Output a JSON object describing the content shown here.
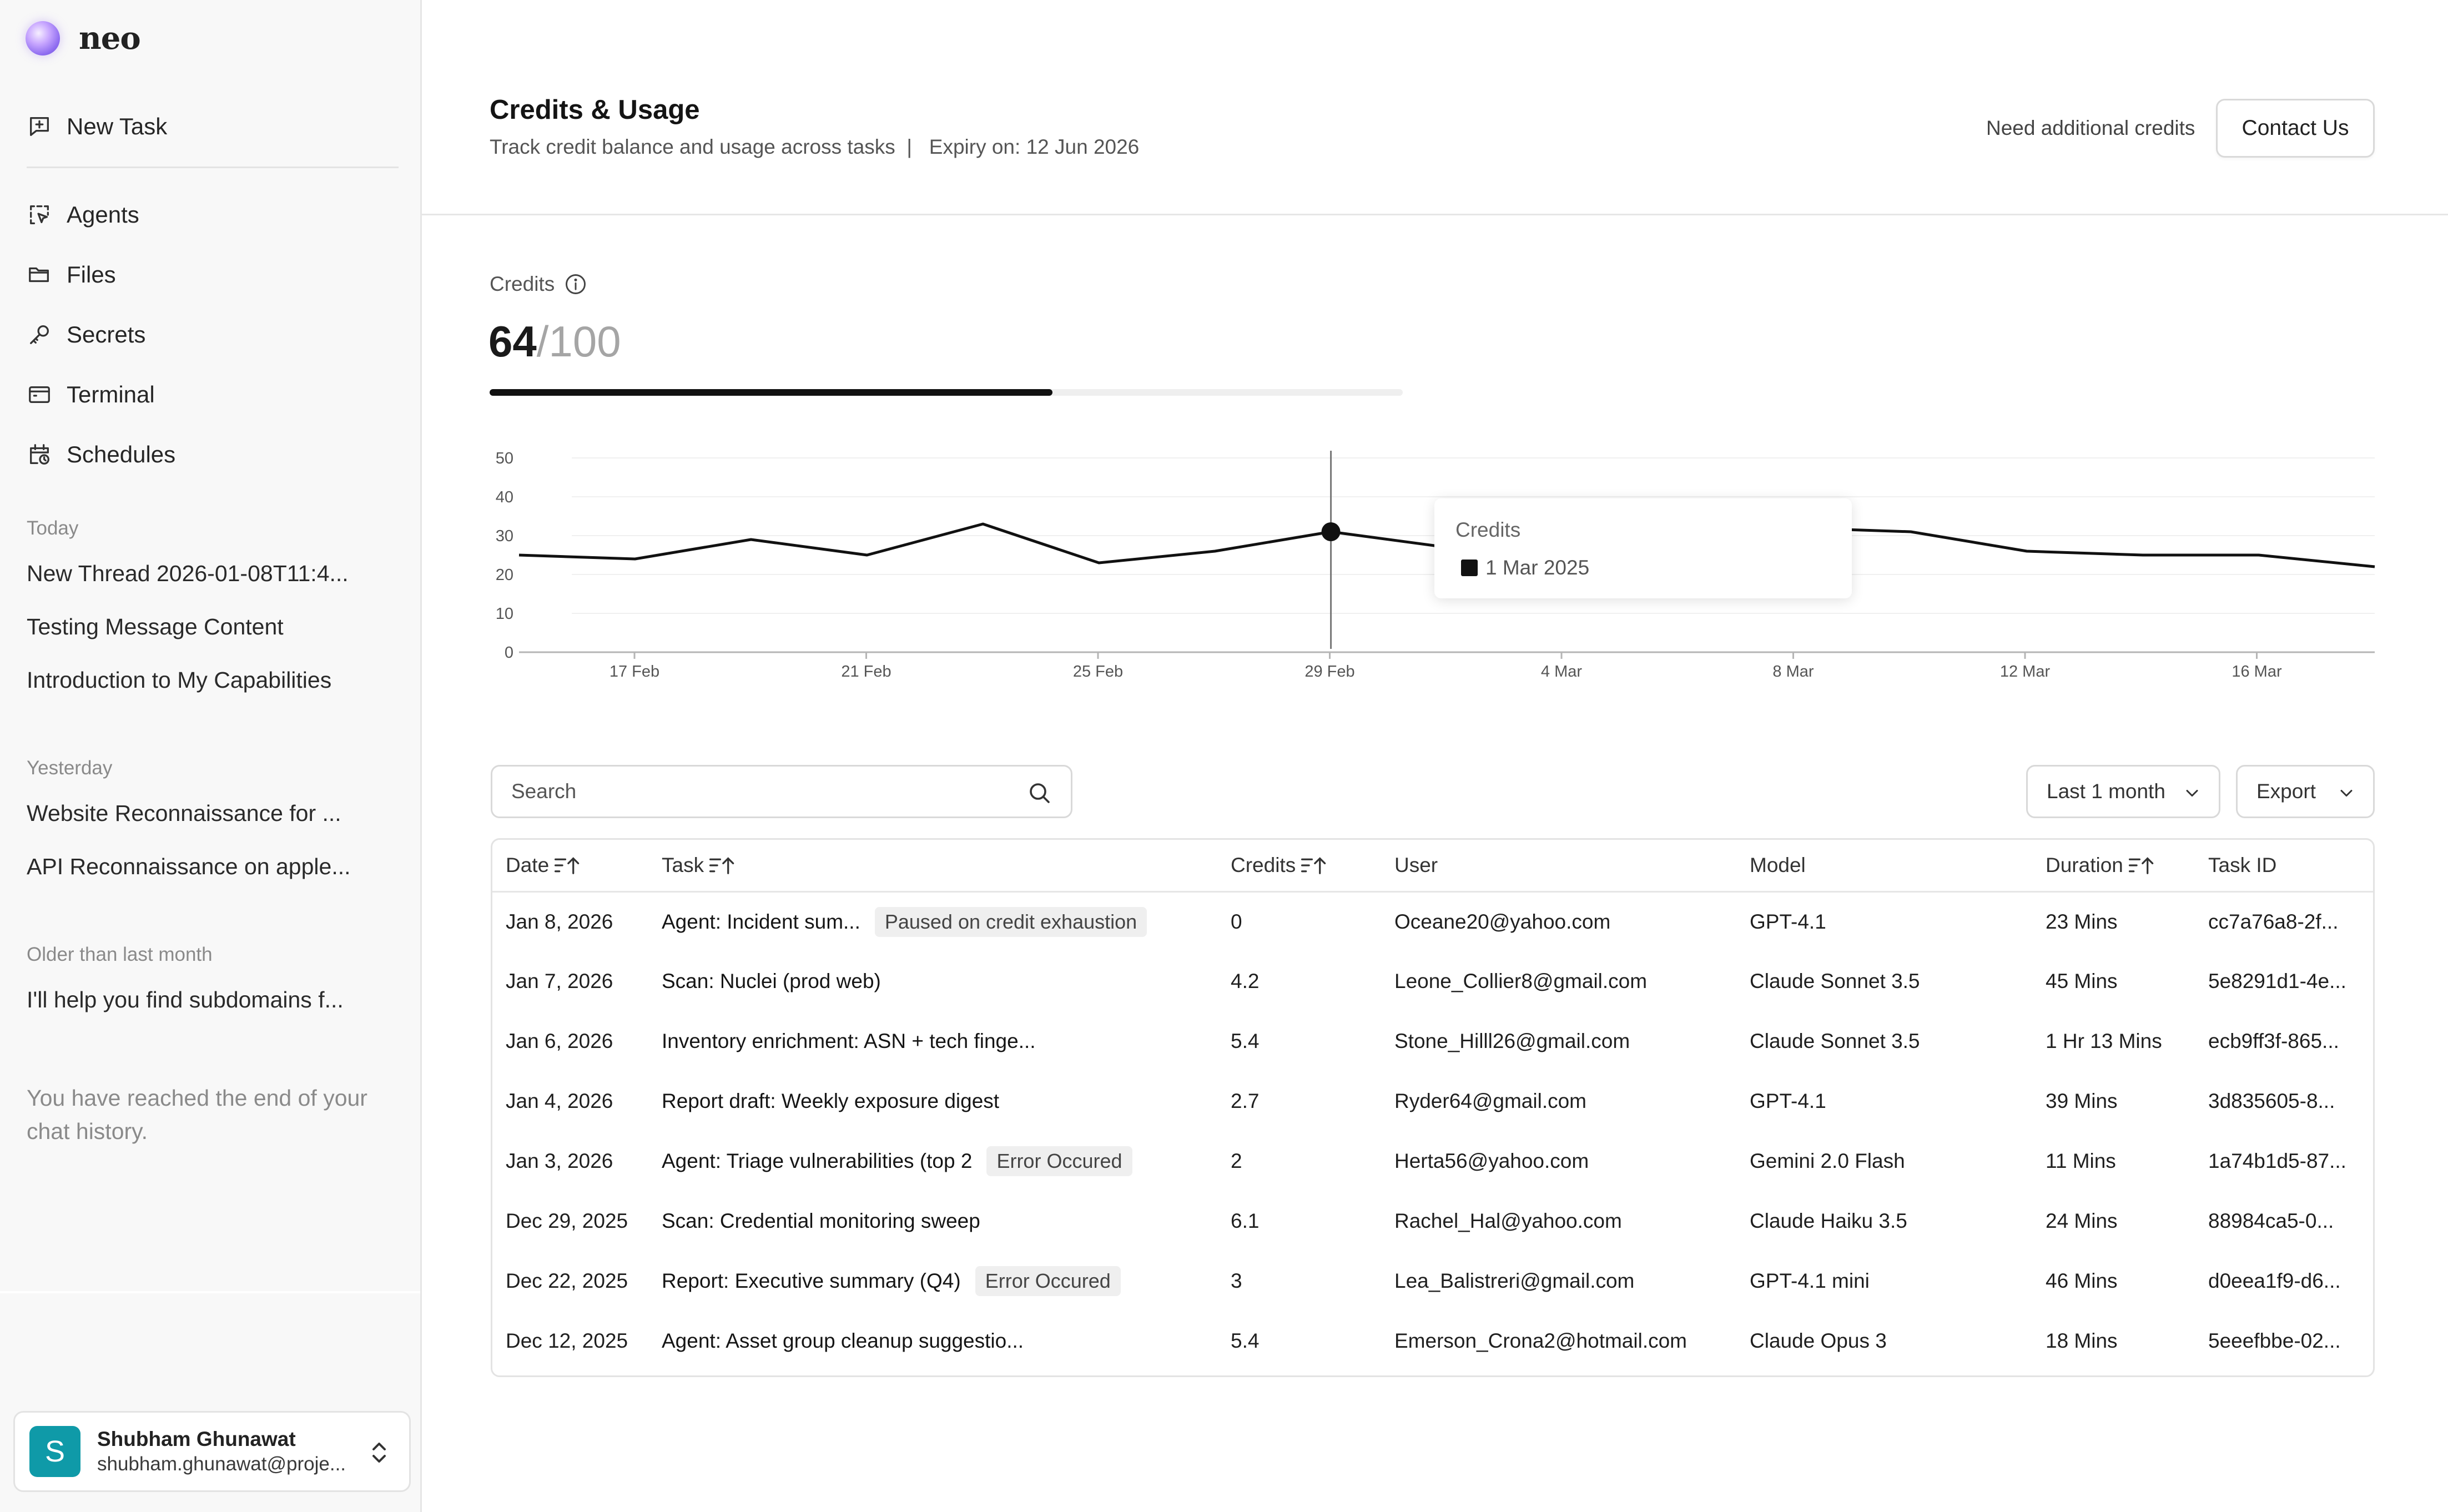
{
  "sidebar": {
    "brand": "neo",
    "new_task": "New Task",
    "nav": [
      {
        "label": "Agents",
        "icon": "agents-icon"
      },
      {
        "label": "Files",
        "icon": "folder-icon"
      },
      {
        "label": "Secrets",
        "icon": "key-icon"
      },
      {
        "label": "Terminal",
        "icon": "terminal-icon"
      },
      {
        "label": "Schedules",
        "icon": "calendar-clock-icon"
      }
    ],
    "sections": [
      {
        "label": "Today",
        "threads": [
          "New Thread 2026-01-08T11:4...",
          "Testing Message Content",
          "Introduction to My Capabilities"
        ]
      },
      {
        "label": "Yesterday",
        "threads": [
          "Website Reconnaissance for ...",
          "API Reconnaissance on apple..."
        ]
      },
      {
        "label": "Older than last month",
        "threads": [
          "I'll help you find subdomains f..."
        ]
      }
    ],
    "end_note": "You have reached the end of your chat history.",
    "user": {
      "initial": "S",
      "name": "Shubham Ghunawat",
      "email": "shubham.ghunawat@proje..."
    }
  },
  "header": {
    "title": "Credits & Usage",
    "subtitle": "Track credit balance and usage across tasks  |   Expiry on: 12 Jun 2026",
    "need_credits": "Need additional credits",
    "contact_button": "Contact Us"
  },
  "credits": {
    "label": "Credits",
    "used": "64",
    "total_text": "/100",
    "used_fraction": 0.64
  },
  "chart_data": {
    "type": "line",
    "x": [
      "15 Feb",
      "16 Feb",
      "19 Feb",
      "22 Feb",
      "25 Feb",
      "27 Feb",
      "29 Feb",
      "1 Mar",
      "3 Mar",
      "5 Mar",
      "8 Mar",
      "10 Mar",
      "12 Mar",
      "14 Mar",
      "16 Mar",
      "17 Mar",
      "19 Mar"
    ],
    "values": [
      25,
      24,
      29,
      25,
      33,
      23,
      26,
      31,
      27,
      32,
      32,
      32,
      31,
      26,
      25,
      25,
      22
    ],
    "x_ticks": [
      "17 Feb",
      "21 Feb",
      "25 Feb",
      "29 Feb",
      "4 Mar",
      "8 Mar",
      "12 Mar",
      "16 Mar"
    ],
    "y_ticks": [
      "0",
      "10",
      "20",
      "30",
      "40",
      "50"
    ],
    "ylim": [
      0,
      50
    ],
    "hover_index": 7,
    "line_color": "#111111"
  },
  "tooltip": {
    "title": "Credits",
    "date": "1 Mar 2025"
  },
  "controls": {
    "search_placeholder": "Search",
    "range": "Last 1 month",
    "export": "Export"
  },
  "table": {
    "columns": [
      "Date",
      "Task",
      "Credits",
      "User",
      "Model",
      "Duration",
      "Task ID"
    ],
    "rows": [
      {
        "date": "Jan 8, 2026",
        "task": "Agent: Incident sum...",
        "badge": "Paused on credit exhaustion",
        "credits": "0",
        "user": "Oceane20@yahoo.com",
        "model": "GPT-4.1",
        "duration": "23 Mins",
        "id": "cc7a76a8-2f..."
      },
      {
        "date": "Jan 7, 2026",
        "task": "Scan: Nuclei (prod web)",
        "badge": "",
        "credits": "4.2",
        "user": "Leone_Collier8@gmail.com",
        "model": "Claude Sonnet 3.5",
        "duration": "45 Mins",
        "id": "5e8291d1-4e..."
      },
      {
        "date": "Jan 6, 2026",
        "task": "Inventory enrichment: ASN + tech finge...",
        "badge": "",
        "credits": "5.4",
        "user": "Stone_Hilll26@gmail.com",
        "model": "Claude Sonnet 3.5",
        "duration": "1 Hr 13 Mins",
        "id": "ecb9ff3f-865..."
      },
      {
        "date": "Jan 4, 2026",
        "task": "Report draft: Weekly exposure digest",
        "badge": "",
        "credits": "2.7",
        "user": "Ryder64@gmail.com",
        "model": "GPT-4.1",
        "duration": "39 Mins",
        "id": "3d835605-8..."
      },
      {
        "date": "Jan 3, 2026",
        "task": "Agent: Triage vulnerabilities (top 2",
        "badge": "Error Occured",
        "credits": "2",
        "user": "Herta56@yahoo.com",
        "model": "Gemini 2.0 Flash",
        "duration": "11 Mins",
        "id": "1a74b1d5-87..."
      },
      {
        "date": "Dec 29, 2025",
        "task": "Scan: Credential monitoring sweep",
        "badge": "",
        "credits": "6.1",
        "user": "Rachel_Hal@yahoo.com",
        "model": "Claude Haiku 3.5",
        "duration": "24 Mins",
        "id": "88984ca5-0..."
      },
      {
        "date": "Dec 22, 2025",
        "task": "Report: Executive summary (Q4)",
        "badge": "Error Occured",
        "credits": "3",
        "user": "Lea_Balistreri@gmail.com",
        "model": "GPT-4.1 mini",
        "duration": "46 Mins",
        "id": "d0eea1f9-d6..."
      },
      {
        "date": "Dec 12, 2025",
        "task": "Agent: Asset group cleanup suggestio...",
        "badge": "",
        "credits": "5.4",
        "user": "Emerson_Crona2@hotmail.com",
        "model": "Claude Opus 3",
        "duration": "18 Mins",
        "id": "5eeefbbe-02..."
      }
    ]
  }
}
